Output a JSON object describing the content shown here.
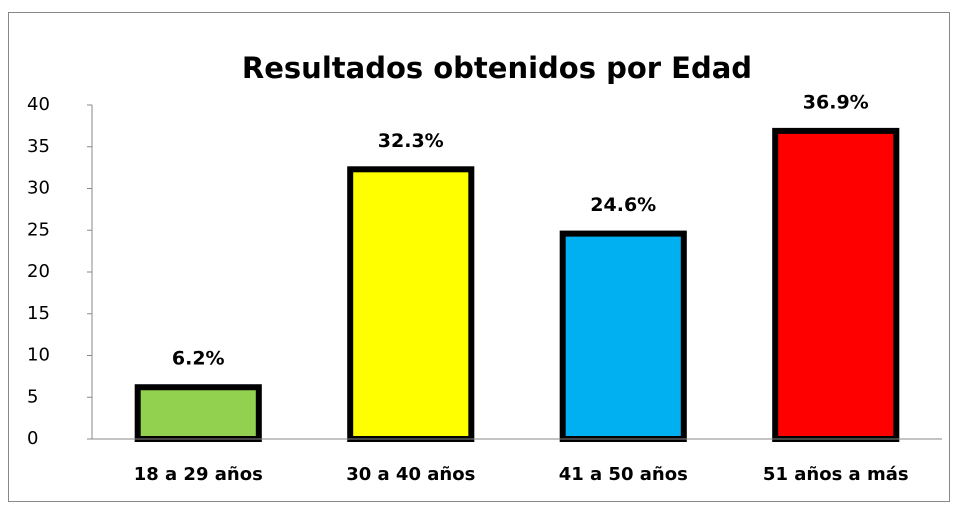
{
  "chart_data": {
    "type": "bar",
    "title": "Resultados obtenidos por Edad",
    "categories": [
      "18 a 29 años",
      "30 a 40 años",
      "41 a 50 años",
      "51 años a más"
    ],
    "values": [
      6.2,
      32.3,
      24.6,
      36.9
    ],
    "value_labels": [
      "6.2%",
      "32.3%",
      "24.6%",
      "36.9%"
    ],
    "colors": [
      "#92d050",
      "#ffff00",
      "#00b0f0",
      "#ff0000"
    ],
    "ylim": [
      0,
      40
    ],
    "yticks": [
      0,
      5,
      10,
      15,
      20,
      25,
      30,
      35,
      40
    ],
    "grid": false
  }
}
